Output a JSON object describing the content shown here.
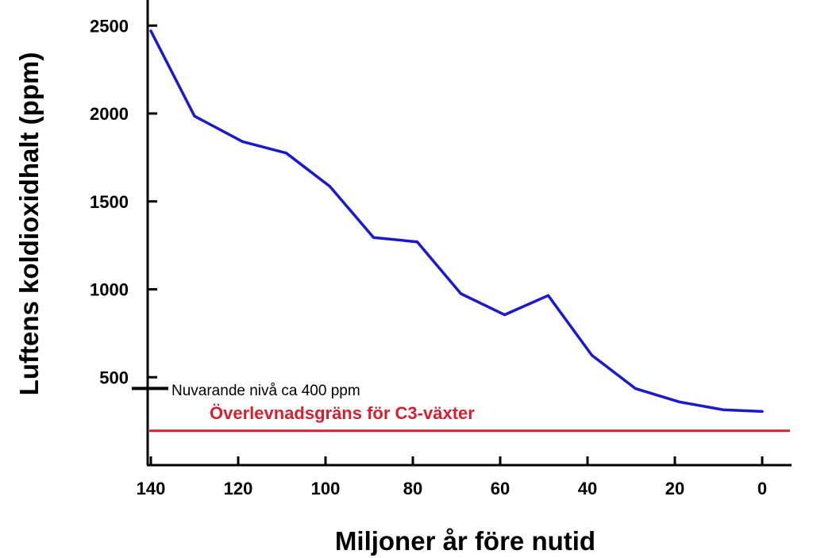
{
  "chart_data": {
    "type": "line",
    "title": "",
    "xlabel": "Miljoner år före nutid",
    "ylabel": "Luftens koldioxidhalt  (ppm)",
    "x_reversed": true,
    "xlim": [
      140,
      0
    ],
    "ylim": [
      0,
      2600
    ],
    "x_ticks": [
      140,
      120,
      100,
      80,
      60,
      40,
      20,
      0
    ],
    "y_ticks": [
      500,
      1000,
      1500,
      2000,
      2500
    ],
    "grid": false,
    "series": [
      {
        "color": "#1a1acc",
        "x": [
          140,
          130,
          119,
          109,
          99,
          89,
          79,
          69,
          59,
          49,
          39,
          29,
          19,
          9,
          0
        ],
        "y": [
          2470,
          1985,
          1840,
          1775,
          1585,
          1295,
          1270,
          975,
          855,
          965,
          625,
          435,
          360,
          315,
          305
        ]
      }
    ],
    "annotations": [
      {
        "text": "Nuvarande nivå ca 400 ppm",
        "y": 400,
        "color": "#000000",
        "marker": "tick-on-y-axis"
      },
      {
        "text": "Överlevnadsgräns för C3-växter",
        "y": 200,
        "color": "#d6202f",
        "marker": "horizontal-line"
      }
    ]
  }
}
